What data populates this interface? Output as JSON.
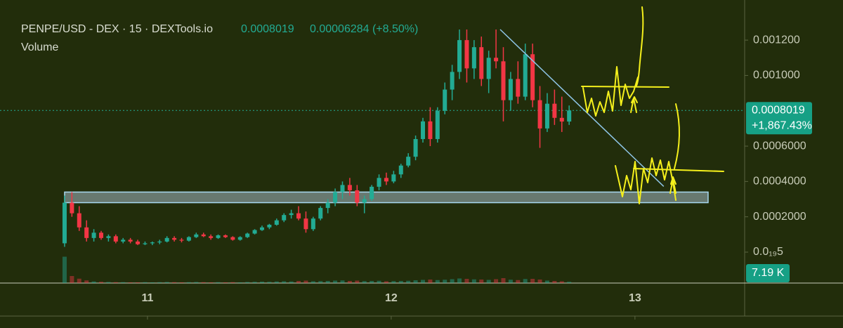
{
  "header": {
    "symbol": "PENPE/USD - DEX · 15 · DEXTools.io",
    "price": "0.0008019",
    "change": "0.00006284 (+8.50%)",
    "volume_title": "Volume"
  },
  "chart_data": {
    "type": "candlestick",
    "x": [
      10.66,
      10.69,
      10.72,
      10.75,
      10.78,
      10.81,
      10.84,
      10.87,
      10.9,
      10.93,
      10.96,
      10.99,
      11.02,
      11.05,
      11.08,
      11.11,
      11.14,
      11.17,
      11.2,
      11.23,
      11.26,
      11.29,
      11.32,
      11.35,
      11.38,
      11.41,
      11.44,
      11.47,
      11.5,
      11.53,
      11.56,
      11.59,
      11.62,
      11.65,
      11.68,
      11.71,
      11.74,
      11.77,
      11.8,
      11.83,
      11.86,
      11.89,
      11.92,
      11.95,
      11.98,
      12.01,
      12.04,
      12.07,
      12.1,
      12.13,
      12.16,
      12.19,
      12.22,
      12.25,
      12.28,
      12.31,
      12.34,
      12.37,
      12.4,
      12.43,
      12.46,
      12.49,
      12.52,
      12.55,
      12.58,
      12.61,
      12.64,
      12.67,
      12.7,
      12.73
    ],
    "open": [
      5e-05,
      0.00028,
      0.00022,
      0.00014,
      8e-05,
      0.00011,
      8e-05,
      9e-05,
      6e-05,
      7e-05,
      6e-05,
      4.5e-05,
      5e-05,
      5.5e-05,
      6e-05,
      8e-05,
      7e-05,
      6.5e-05,
      8.5e-05,
      0.0001,
      9e-05,
      8e-05,
      9.5e-05,
      8.5e-05,
      7e-05,
      8.5e-05,
      0.000105,
      0.000125,
      0.00014,
      0.000155,
      0.00018,
      0.00021,
      0.00022,
      0.00019,
      0.00013,
      0.00019,
      0.00025,
      0.00028,
      0.00034,
      0.00038,
      0.00035,
      0.00028,
      0.0003,
      0.00037,
      0.00042,
      0.0004,
      0.00044,
      0.00049,
      0.00054,
      0.00064,
      0.00074,
      0.00064,
      0.0008,
      0.00092,
      0.00102,
      0.0012,
      0.00104,
      0.00116,
      0.00098,
      0.0011,
      0.00108,
      0.00086,
      0.00098,
      0.00088,
      0.00112,
      0.00086,
      0.0007,
      0.00084,
      0.00076,
      0.0007391
    ],
    "high": [
      0.00032,
      0.00034,
      0.00026,
      0.00018,
      0.00013,
      0.00012,
      0.0001,
      0.0001,
      8e-05,
      8e-05,
      7e-05,
      6e-05,
      6e-05,
      7e-05,
      9e-05,
      9e-05,
      8e-05,
      9e-05,
      0.00011,
      0.00011,
      0.0001,
      0.0001,
      0.0001,
      9e-05,
      9e-05,
      0.00011,
      0.00013,
      0.00015,
      0.00016,
      0.00019,
      0.00022,
      0.00024,
      0.00026,
      0.00023,
      0.0002,
      0.00026,
      0.0003,
      0.00036,
      0.0004,
      0.00042,
      0.00038,
      0.00032,
      0.00038,
      0.00044,
      0.00045,
      0.00046,
      0.0005,
      0.00056,
      0.00066,
      0.00076,
      0.00082,
      0.00082,
      0.00096,
      0.00106,
      0.00126,
      0.00126,
      0.0012,
      0.00122,
      0.00114,
      0.00126,
      0.00116,
      0.00102,
      0.00108,
      0.00118,
      0.00118,
      0.00094,
      0.0009,
      0.00092,
      0.00088,
      0.00083
    ],
    "low": [
      3e-05,
      0.0002,
      0.00012,
      6e-05,
      6e-05,
      7e-05,
      6e-05,
      5e-05,
      5e-05,
      5e-05,
      4e-05,
      4e-05,
      4e-05,
      4.5e-05,
      5.5e-05,
      6e-05,
      5.5e-05,
      6e-05,
      8e-05,
      8.5e-05,
      7e-05,
      7.5e-05,
      8e-05,
      6.5e-05,
      6.5e-05,
      8e-05,
      0.0001,
      0.00012,
      0.00013,
      0.00015,
      0.00017,
      0.00019,
      0.00018,
      0.00011,
      0.00012,
      0.00018,
      0.00022,
      0.00026,
      0.0003,
      0.00032,
      0.00026,
      0.00022,
      0.00029,
      0.00035,
      0.00038,
      0.00039,
      0.00042,
      0.00048,
      0.00052,
      0.00062,
      0.0006,
      0.00062,
      0.00078,
      0.00086,
      0.00098,
      0.00096,
      0.00098,
      0.00094,
      0.0009,
      0.00104,
      0.00074,
      0.0008,
      0.00084,
      0.00086,
      0.00082,
      0.00059,
      0.00068,
      0.00072,
      0.00068,
      0.00072
    ],
    "close": [
      0.00028,
      0.00022,
      0.00014,
      8e-05,
      0.00011,
      8e-05,
      9e-05,
      6e-05,
      7e-05,
      6e-05,
      4.5e-05,
      5e-05,
      5.5e-05,
      6e-05,
      8e-05,
      7e-05,
      6.5e-05,
      8.5e-05,
      0.0001,
      9e-05,
      8e-05,
      9.5e-05,
      8.5e-05,
      7e-05,
      8.5e-05,
      0.000105,
      0.000125,
      0.00014,
      0.000155,
      0.00018,
      0.00021,
      0.00022,
      0.00019,
      0.00013,
      0.00019,
      0.00025,
      0.00028,
      0.00034,
      0.00038,
      0.00035,
      0.00028,
      0.0003,
      0.00037,
      0.00042,
      0.0004,
      0.00044,
      0.00049,
      0.00054,
      0.00064,
      0.00074,
      0.00064,
      0.0008,
      0.00092,
      0.00102,
      0.0012,
      0.00104,
      0.00116,
      0.00098,
      0.0011,
      0.00108,
      0.00086,
      0.00098,
      0.00088,
      0.00112,
      0.00086,
      0.0007,
      0.00084,
      0.00076,
      0.0007391,
      0.0008019
    ],
    "volume": [
      150000,
      40000,
      25000,
      15000,
      9000,
      7000,
      6000,
      5000,
      5000,
      4000,
      4000,
      5000,
      4000,
      5000,
      6000,
      5000,
      4000,
      5000,
      6000,
      5000,
      4000,
      5000,
      4000,
      5000,
      4000,
      6000,
      7000,
      8000,
      7000,
      9000,
      10000,
      9000,
      12000,
      14000,
      10000,
      11000,
      12000,
      14000,
      15000,
      12000,
      14000,
      11000,
      12000,
      13000,
      10000,
      11000,
      12000,
      13000,
      16000,
      18000,
      20000,
      17000,
      19000,
      22000,
      26000,
      24000,
      21000,
      20000,
      18000,
      22000,
      28000,
      19000,
      17000,
      23000,
      24000,
      20000,
      14000,
      12000,
      10000,
      7190
    ],
    "colors": {
      "up": "#22ab94",
      "down": "#f23645"
    },
    "xlim": [
      10.395,
      13.45
    ],
    "xticks": [
      11,
      12,
      13
    ],
    "ylim": [
      -0.000175,
      0.001427
    ],
    "yticks": [
      {
        "value": 0,
        "label": "0.0₁₉5"
      },
      {
        "value": 0.0002,
        "label": "0.0002000"
      },
      {
        "value": 0.0004,
        "label": "0.0004000"
      },
      {
        "value": 0.0006,
        "label": "0.0006000"
      },
      {
        "value": 0.001,
        "label": "0.001000"
      },
      {
        "value": 0.0012,
        "label": "0.001200"
      }
    ],
    "vlim": [
      0,
      400000
    ],
    "price_label": {
      "value": 0.0008019,
      "label": "0.0008019"
    },
    "change_label": "+1,867.43%",
    "volume_label": {
      "value": 7190,
      "label": "7.19 K"
    },
    "zone": {
      "x": [
        10.66,
        13.3
      ],
      "y": [
        0.00028,
        0.00034
      ]
    },
    "trendline": {
      "x": [
        12.447,
        13.118
      ],
      "y": [
        0.00126,
        0.000372
      ]
    }
  }
}
